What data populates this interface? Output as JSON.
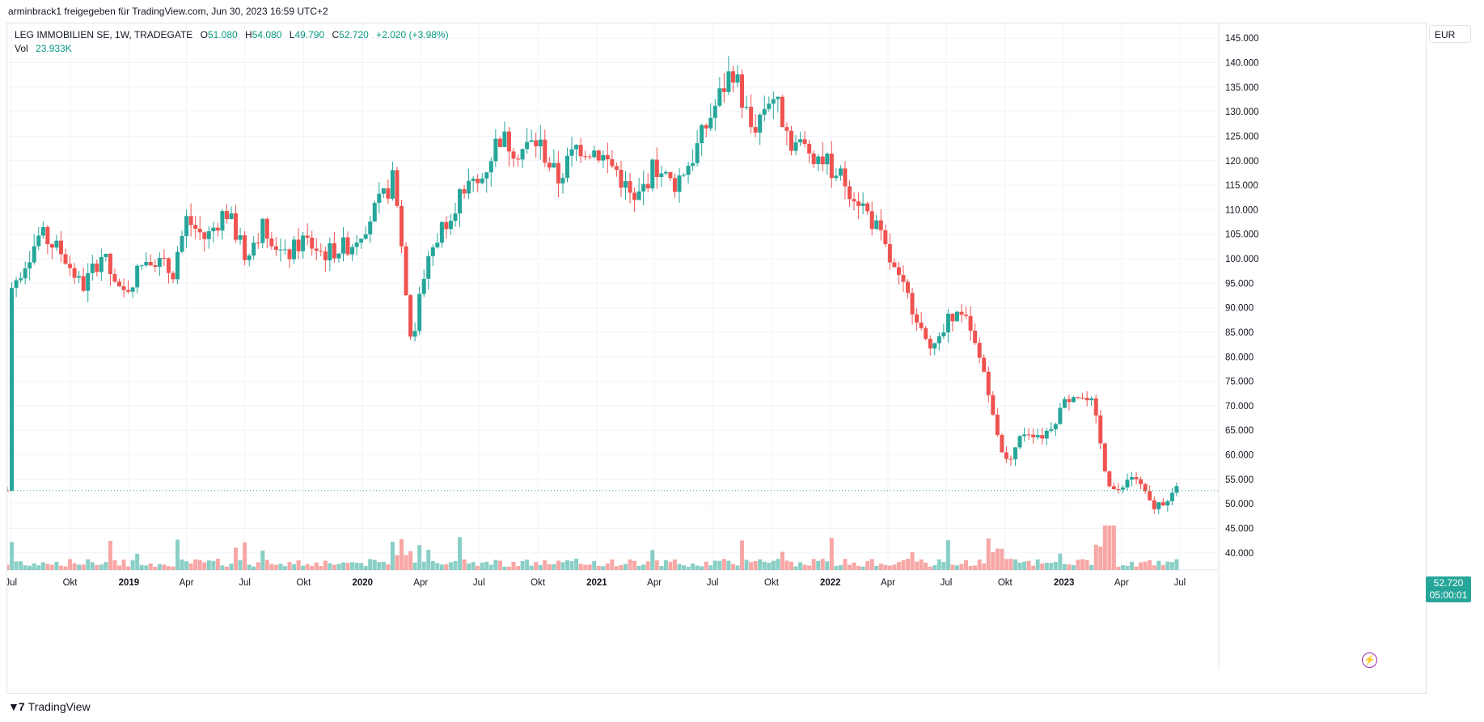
{
  "header": {
    "share_line": "arminbrack1 freigegeben für TradingView.com, Jun 30, 2023 16:59 UTC+2"
  },
  "legend": {
    "symbol": "LEG IMMOBILIEN SE, 1W, TRADEGATE",
    "open_label": "O",
    "open": "51.080",
    "high_label": "H",
    "high": "54.080",
    "low_label": "L",
    "low": "49.790",
    "close_label": "C",
    "close": "52.720",
    "change": "+2.020 (+3.98%)",
    "vol_label": "Vol",
    "vol": "23.933K"
  },
  "price_axis": {
    "currency": "EUR",
    "last_price": "52.720",
    "countdown": "05:00:01"
  },
  "branding": {
    "name": "TradingView",
    "logo_icon": "tradingview-logo-icon"
  },
  "colors": {
    "up": "#26a69a",
    "down": "#ef5350",
    "up_vol": "#89cfc6",
    "down_vol": "#f7a7a5",
    "grid": "#f0f3fa"
  },
  "chart_data": {
    "type": "candlestick",
    "title": "LEG IMMOBILIEN SE, 1W, TRADEGATE",
    "currency": "EUR",
    "ylim": [
      37,
      148
    ],
    "y_ticks": [
      "40.000",
      "45.000",
      "50.000",
      "55.000",
      "60.000",
      "65.000",
      "70.000",
      "75.000",
      "80.000",
      "85.000",
      "90.000",
      "95.000",
      "100.000",
      "105.000",
      "110.000",
      "115.000",
      "120.000",
      "125.000",
      "130.000",
      "135.000",
      "140.000",
      "145.000"
    ],
    "x_ticks": [
      "Jul",
      "Okt",
      "2019",
      "Apr",
      "Jul",
      "Okt",
      "2020",
      "Apr",
      "Jul",
      "Okt",
      "2021",
      "Apr",
      "Jul",
      "Okt",
      "2022",
      "Apr",
      "Jul",
      "Okt",
      "2023",
      "Apr",
      "Jul"
    ],
    "anchors": [
      [
        "2018-07-01",
        94
      ],
      [
        "2018-08-15",
        105
      ],
      [
        "2018-09-20",
        101
      ],
      [
        "2018-10-20",
        94
      ],
      [
        "2018-11-20",
        101
      ],
      [
        "2018-12-20",
        92
      ],
      [
        "2019-02-01",
        101
      ],
      [
        "2019-03-10",
        97
      ],
      [
        "2019-04-01",
        108
      ],
      [
        "2019-05-01",
        104
      ],
      [
        "2019-06-01",
        110
      ],
      [
        "2019-07-01",
        101
      ],
      [
        "2019-08-01",
        107
      ],
      [
        "2019-09-01",
        100
      ],
      [
        "2019-10-01",
        104
      ],
      [
        "2019-11-01",
        101
      ],
      [
        "2019-12-15",
        103
      ],
      [
        "2020-02-01",
        112
      ],
      [
        "2020-02-21",
        117
      ],
      [
        "2020-03-18",
        82
      ],
      [
        "2020-04-10",
        100
      ],
      [
        "2020-05-10",
        108
      ],
      [
        "2020-06-10",
        115
      ],
      [
        "2020-07-01",
        115
      ],
      [
        "2020-08-01",
        125
      ],
      [
        "2020-09-01",
        122
      ],
      [
        "2020-10-01",
        124
      ],
      [
        "2020-11-01",
        116
      ],
      [
        "2020-12-01",
        123
      ],
      [
        "2021-01-01",
        122
      ],
      [
        "2021-02-01",
        118
      ],
      [
        "2021-03-01",
        111
      ],
      [
        "2021-04-01",
        119
      ],
      [
        "2021-05-01",
        115
      ],
      [
        "2021-06-01",
        121
      ],
      [
        "2021-07-01",
        130
      ],
      [
        "2021-08-01",
        139
      ],
      [
        "2021-09-01",
        126
      ],
      [
        "2021-10-01",
        134
      ],
      [
        "2021-11-01",
        124
      ],
      [
        "2021-12-15",
        121
      ],
      [
        "2022-01-15",
        117
      ],
      [
        "2022-02-15",
        112
      ],
      [
        "2022-03-15",
        106
      ],
      [
        "2022-04-15",
        96
      ],
      [
        "2022-05-15",
        89
      ],
      [
        "2022-06-15",
        81
      ],
      [
        "2022-07-10",
        89
      ],
      [
        "2022-08-01",
        87
      ],
      [
        "2022-09-01",
        76
      ],
      [
        "2022-10-01",
        58
      ],
      [
        "2022-11-01",
        65
      ],
      [
        "2022-12-01",
        64
      ],
      [
        "2023-01-15",
        73
      ],
      [
        "2023-02-15",
        70
      ],
      [
        "2023-03-10",
        55
      ],
      [
        "2023-03-25",
        52
      ],
      [
        "2023-04-20",
        56
      ],
      [
        "2023-05-20",
        49
      ],
      [
        "2023-06-26",
        52.72
      ]
    ]
  }
}
